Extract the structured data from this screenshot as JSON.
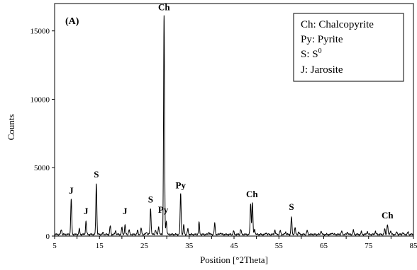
{
  "chart_data": {
    "type": "line",
    "panel_label": "(A)",
    "xlabel": "Position [°2Theta]",
    "ylabel": "Counts",
    "xlim": [
      5,
      85
    ],
    "ylim": [
      0,
      17000
    ],
    "x_ticks": [
      5,
      15,
      25,
      35,
      45,
      55,
      65,
      75,
      85
    ],
    "x_tick_labels": [
      "5",
      "",
      "15",
      "",
      "25",
      "",
      "35",
      "",
      "45",
      "",
      "55",
      "",
      "65",
      "",
      "75",
      "",
      "85"
    ],
    "x_tick_positions": [
      5,
      10,
      15,
      20,
      25,
      30,
      35,
      40,
      45,
      50,
      55,
      60,
      65,
      70,
      75,
      80,
      85
    ],
    "y_ticks": [
      0,
      5000,
      10000,
      15000
    ],
    "y_tick_labels": [
      "0",
      "5000",
      "10000",
      "15000"
    ],
    "grid": false,
    "legend_position": "top-right",
    "legend": [
      {
        "abbr": "Ch",
        "name": "Chalcopyrite",
        "text": "Ch: Chalcopyrite"
      },
      {
        "abbr": "Py",
        "name": "Pyrite",
        "text": "Py: Pyrite"
      },
      {
        "abbr": "S",
        "name": "S0",
        "text": "S: S",
        "sup": "0"
      },
      {
        "abbr": "J",
        "name": "Jarosite",
        "text": "J: Jarosite"
      }
    ],
    "background_level": 120,
    "peaks": [
      {
        "x": 6.5,
        "y": 500
      },
      {
        "x": 8.7,
        "y": 2700
      },
      {
        "x": 10.5,
        "y": 500
      },
      {
        "x": 12.0,
        "y": 1100
      },
      {
        "x": 14.3,
        "y": 3850
      },
      {
        "x": 15.8,
        "y": 250
      },
      {
        "x": 17.4,
        "y": 750
      },
      {
        "x": 18.6,
        "y": 400
      },
      {
        "x": 20.0,
        "y": 600
      },
      {
        "x": 20.7,
        "y": 800
      },
      {
        "x": 21.6,
        "y": 450
      },
      {
        "x": 23.5,
        "y": 400
      },
      {
        "x": 24.3,
        "y": 550
      },
      {
        "x": 25.5,
        "y": 300
      },
      {
        "x": 26.4,
        "y": 2000
      },
      {
        "x": 27.5,
        "y": 450
      },
      {
        "x": 28.2,
        "y": 700
      },
      {
        "x": 29.4,
        "y": 16100
      },
      {
        "x": 29.9,
        "y": 1100
      },
      {
        "x": 33.1,
        "y": 3100
      },
      {
        "x": 33.8,
        "y": 800
      },
      {
        "x": 34.7,
        "y": 500
      },
      {
        "x": 37.2,
        "y": 1000
      },
      {
        "x": 39.4,
        "y": 300
      },
      {
        "x": 40.7,
        "y": 900
      },
      {
        "x": 42.0,
        "y": 250
      },
      {
        "x": 44.9,
        "y": 350
      },
      {
        "x": 46.5,
        "y": 500
      },
      {
        "x": 48.7,
        "y": 2400
      },
      {
        "x": 49.1,
        "y": 2450
      },
      {
        "x": 49.6,
        "y": 500
      },
      {
        "x": 52.2,
        "y": 250
      },
      {
        "x": 54.1,
        "y": 450
      },
      {
        "x": 55.3,
        "y": 400
      },
      {
        "x": 56.5,
        "y": 300
      },
      {
        "x": 57.8,
        "y": 1400
      },
      {
        "x": 58.6,
        "y": 600
      },
      {
        "x": 59.4,
        "y": 300
      },
      {
        "x": 61.3,
        "y": 400
      },
      {
        "x": 64.4,
        "y": 400
      },
      {
        "x": 66.9,
        "y": 250
      },
      {
        "x": 69.0,
        "y": 350
      },
      {
        "x": 70.3,
        "y": 300
      },
      {
        "x": 71.6,
        "y": 400
      },
      {
        "x": 73.4,
        "y": 300
      },
      {
        "x": 74.7,
        "y": 350
      },
      {
        "x": 76.5,
        "y": 350
      },
      {
        "x": 78.6,
        "y": 500
      },
      {
        "x": 79.2,
        "y": 850
      },
      {
        "x": 79.9,
        "y": 400
      },
      {
        "x": 81.3,
        "y": 300
      },
      {
        "x": 82.6,
        "y": 250
      },
      {
        "x": 83.8,
        "y": 300
      }
    ],
    "annotations": [
      {
        "text": "Ch",
        "x": 29.4,
        "y": 16500
      },
      {
        "text": "J",
        "x": 8.7,
        "y": 3100
      },
      {
        "text": "J",
        "x": 12.0,
        "y": 1600
      },
      {
        "text": "S",
        "x": 14.3,
        "y": 4300
      },
      {
        "text": "J",
        "x": 20.7,
        "y": 1600
      },
      {
        "text": "S",
        "x": 26.4,
        "y": 2450
      },
      {
        "text": "Py",
        "x": 29.2,
        "y": 1700
      },
      {
        "text": "Py",
        "x": 33.1,
        "y": 3500
      },
      {
        "text": "Ch",
        "x": 49.0,
        "y": 2850
      },
      {
        "text": "S",
        "x": 57.8,
        "y": 1900
      },
      {
        "text": "Ch",
        "x": 79.2,
        "y": 1300
      }
    ]
  }
}
